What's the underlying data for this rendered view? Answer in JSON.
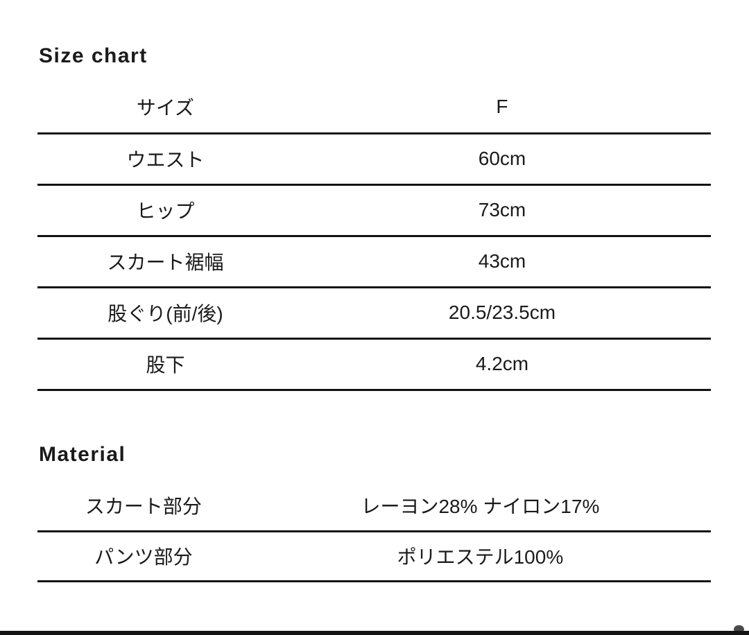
{
  "colors": {
    "background": "#ffffff",
    "text": "#1a1a1a",
    "rule": "#121212",
    "bottom_bar": "#141414",
    "scroll_peek": "#4a4a4a"
  },
  "size_chart": {
    "title": "Size chart",
    "header": {
      "label": "サイズ",
      "value": "F"
    },
    "rows": [
      {
        "label": "ウエスト",
        "value": "60cm"
      },
      {
        "label": "ヒップ",
        "value": "73cm"
      },
      {
        "label": "スカート裾幅",
        "value": "43cm"
      },
      {
        "label": "股ぐり(前/後)",
        "value": "20.5/23.5cm"
      },
      {
        "label": "股下",
        "value": "4.2cm"
      }
    ]
  },
  "material": {
    "title": "Material",
    "rows": [
      {
        "label": "スカート部分",
        "value": "レーヨン28% ナイロン17%"
      },
      {
        "label": "パンツ部分",
        "value": "ポリエステル100%"
      }
    ]
  }
}
